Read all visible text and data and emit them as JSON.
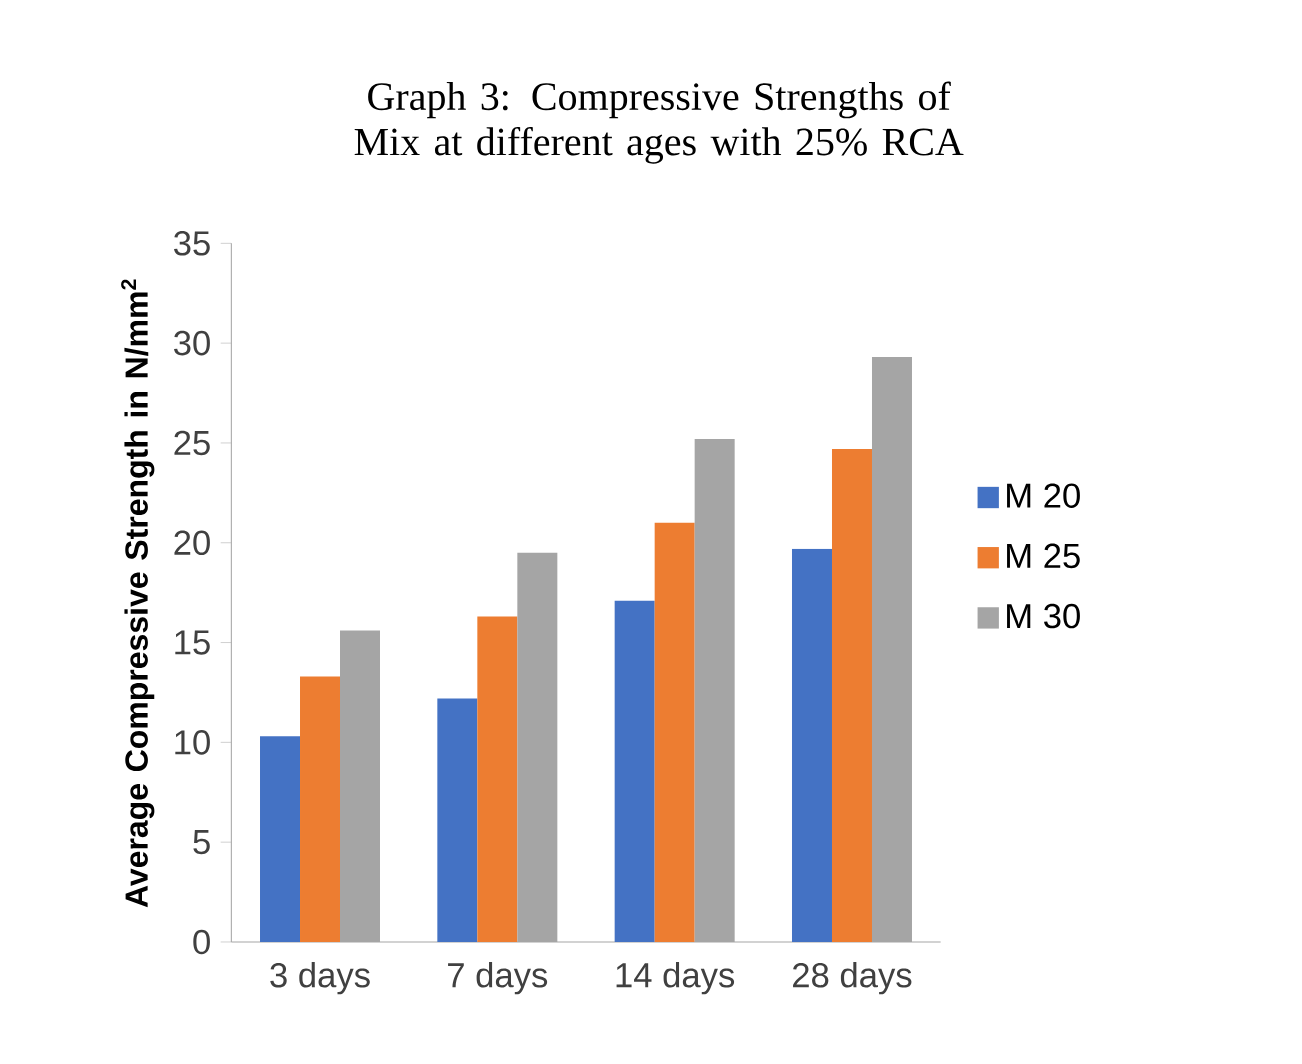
{
  "chart_data": {
    "type": "bar",
    "title": "Graph 3: Compressive Strengths of Mix at different ages with 25% RCA",
    "ylabel": "Average Compressive Strength in N/mm$^{2}$",
    "categories": [
      "3 days",
      "7 days",
      "14 days",
      "28 days"
    ],
    "series": [
      {
        "name": "M 20",
        "color": "#4472c4",
        "values": [
          10.3,
          12.2,
          17.1,
          19.7
        ]
      },
      {
        "name": "M 25",
        "color": "#ed7d31",
        "values": [
          13.3,
          16.3,
          21.0,
          24.7
        ]
      },
      {
        "name": "M 30",
        "color": "#a5a5a5",
        "values": [
          15.6,
          19.5,
          25.2,
          29.3
        ]
      }
    ],
    "ylim": [
      0,
      35
    ],
    "yticks": [
      0,
      5,
      10,
      15,
      20,
      25,
      30,
      35
    ],
    "grid": false,
    "legend": "right"
  }
}
